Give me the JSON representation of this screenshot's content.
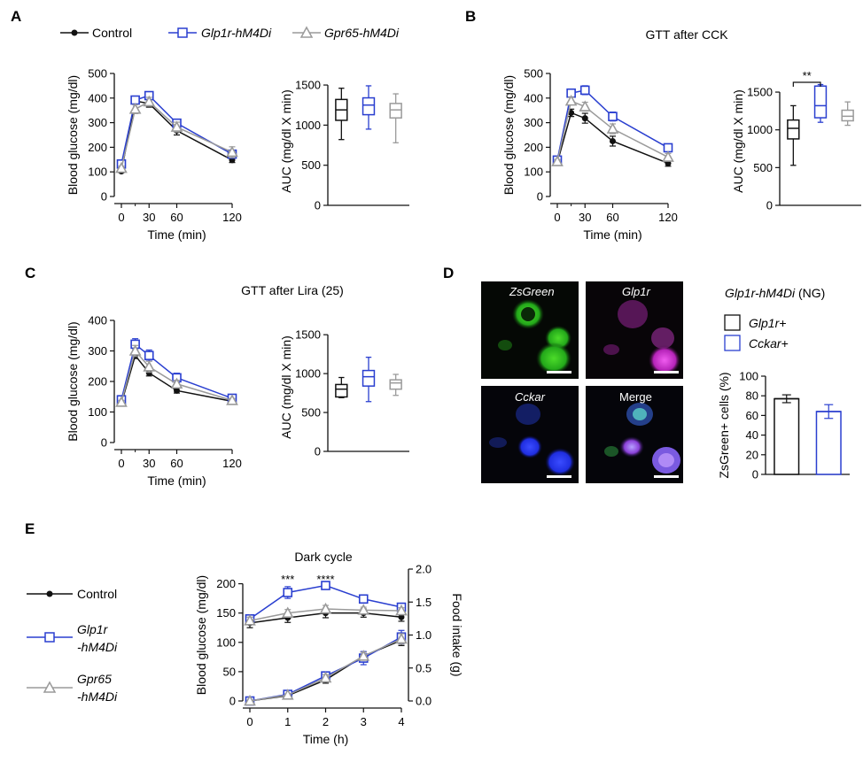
{
  "colors": {
    "control": "#111111",
    "glp1r": "#2a3fd0",
    "gpr65": "#9a9a9a"
  },
  "panels": {
    "A": "A",
    "B": "B",
    "C": "C",
    "D": "D",
    "E": "E"
  },
  "legend_top": {
    "control": "Control",
    "glp1r": "Glp1r-hM4Di",
    "gpr65": "Gpr65-hM4Di"
  },
  "legend_e": {
    "control": "Control",
    "glp1r_1": "Glp1r",
    "glp1r_2": "-hM4Di",
    "gpr65_1": "Gpr65",
    "gpr65_2": "-hM4Di"
  },
  "images": {
    "zsgreen": "ZsGreen",
    "glp1r": "Glp1r",
    "cckar": "Cckar",
    "merge": "Merge"
  },
  "chart_data": [
    {
      "id": "A-line",
      "type": "line",
      "title": "",
      "xlabel": "Time (min)",
      "ylabel": "Blood glucose (mg/dl)",
      "x": [
        0,
        15,
        30,
        60,
        120
      ],
      "xticks": [
        0,
        30,
        60,
        120
      ],
      "ylim": [
        0,
        500
      ],
      "yticks": [
        0,
        100,
        200,
        300,
        400,
        500
      ],
      "series": [
        {
          "name": "Control",
          "values": [
            102,
            388,
            378,
            268,
            148
          ],
          "err": [
            5,
            12,
            15,
            18,
            10
          ]
        },
        {
          "name": "Glp1r-hM4Di",
          "values": [
            132,
            392,
            410,
            298,
            172
          ],
          "err": [
            10,
            15,
            15,
            15,
            15
          ]
        },
        {
          "name": "Gpr65-hM4Di",
          "values": [
            115,
            355,
            385,
            282,
            180
          ],
          "err": [
            8,
            18,
            18,
            20,
            22
          ]
        }
      ]
    },
    {
      "id": "A-box",
      "type": "box",
      "title": "",
      "ylabel": "AUC (mg/dl X min)",
      "ylim": [
        0,
        1600
      ],
      "yticks": [
        0,
        500,
        1000,
        1500
      ],
      "boxes": [
        {
          "name": "Control",
          "min": 820,
          "q1": 1060,
          "median": 1190,
          "q3": 1320,
          "max": 1460
        },
        {
          "name": "Glp1r-hM4Di",
          "min": 950,
          "q1": 1130,
          "median": 1250,
          "q3": 1340,
          "max": 1490
        },
        {
          "name": "Gpr65-hM4Di",
          "min": 780,
          "q1": 1090,
          "median": 1190,
          "q3": 1270,
          "max": 1390
        }
      ]
    },
    {
      "id": "B-line",
      "type": "line",
      "title": "GTT after CCK",
      "xlabel": "Time (min)",
      "ylabel": "Blood glucose (mg/dl)",
      "x": [
        0,
        15,
        30,
        60,
        120
      ],
      "xticks": [
        0,
        30,
        60,
        120
      ],
      "ylim": [
        0,
        500
      ],
      "yticks": [
        0,
        100,
        200,
        300,
        400,
        500
      ],
      "series": [
        {
          "name": "Control",
          "values": [
            138,
            340,
            318,
            225,
            135
          ],
          "err": [
            8,
            15,
            20,
            20,
            12
          ]
        },
        {
          "name": "Glp1r-hM4Di",
          "values": [
            148,
            420,
            432,
            325,
            198
          ],
          "err": [
            8,
            15,
            18,
            18,
            12
          ]
        },
        {
          "name": "Gpr65-hM4Di",
          "values": [
            142,
            388,
            365,
            275,
            160
          ],
          "err": [
            8,
            15,
            18,
            20,
            15
          ]
        }
      ]
    },
    {
      "id": "B-box",
      "type": "box",
      "title": "",
      "ylabel": "AUC (mg/dl X min)",
      "ylim": [
        0,
        1700
      ],
      "yticks": [
        0,
        500,
        1000,
        1500
      ],
      "significance": "**",
      "boxes": [
        {
          "name": "Control",
          "min": 530,
          "q1": 880,
          "median": 1020,
          "q3": 1130,
          "max": 1320
        },
        {
          "name": "Glp1r-hM4Di",
          "min": 1100,
          "q1": 1160,
          "median": 1320,
          "q3": 1580,
          "max": 1600
        },
        {
          "name": "Gpr65-hM4Di",
          "min": 1060,
          "q1": 1120,
          "median": 1180,
          "q3": 1260,
          "max": 1370
        }
      ]
    },
    {
      "id": "C-line",
      "type": "line",
      "title": "GTT after Lira (25)",
      "xlabel": "Time (min)",
      "ylabel": "Blood glucose (mg/dl)",
      "x": [
        0,
        15,
        30,
        60,
        120
      ],
      "xticks": [
        0,
        30,
        60,
        120
      ],
      "ylim": [
        0,
        400
      ],
      "yticks": [
        0,
        100,
        200,
        300,
        400
      ],
      "series": [
        {
          "name": "Control",
          "values": [
            128,
            285,
            228,
            170,
            135
          ],
          "err": [
            5,
            10,
            10,
            8,
            6
          ]
        },
        {
          "name": "Glp1r-hM4Di",
          "values": [
            140,
            322,
            285,
            212,
            145
          ],
          "err": [
            6,
            18,
            18,
            15,
            8
          ]
        },
        {
          "name": "Gpr65-hM4Di",
          "values": [
            132,
            300,
            248,
            192,
            138
          ],
          "err": [
            6,
            18,
            18,
            12,
            6
          ]
        }
      ]
    },
    {
      "id": "C-box",
      "type": "box",
      "title": "",
      "ylabel": "AUC (mg/dl X min)",
      "ylim": [
        0,
        1650
      ],
      "yticks": [
        0,
        500,
        1000,
        1500
      ],
      "boxes": [
        {
          "name": "Control",
          "min": 690,
          "q1": 700,
          "median": 800,
          "q3": 860,
          "max": 950
        },
        {
          "name": "Glp1r-hM4Di",
          "min": 640,
          "q1": 840,
          "median": 960,
          "q3": 1040,
          "max": 1210
        },
        {
          "name": "Gpr65-hM4Di",
          "min": 720,
          "q1": 800,
          "median": 880,
          "q3": 920,
          "max": 990
        }
      ]
    },
    {
      "id": "D-bar",
      "type": "bar",
      "title": "Glp1r-hM4Di (NG)",
      "ylabel": "ZsGreen+ cells (%)",
      "ylim": [
        0,
        100
      ],
      "yticks": [
        0,
        20,
        40,
        60,
        80,
        100
      ],
      "categories": [
        "Glp1r+",
        "Cckar+"
      ],
      "values": [
        77,
        64
      ],
      "err": [
        4,
        7
      ]
    },
    {
      "id": "E-line",
      "type": "line",
      "title": "Dark cycle",
      "xlabel": "Time (h)",
      "ylabel": "Blood glucose (mg/dl)",
      "y2label": "Food intake (g)",
      "x": [
        0,
        1,
        2,
        3,
        4
      ],
      "xticks": [
        0,
        1,
        2,
        3,
        4
      ],
      "ylim": [
        0,
        225
      ],
      "yticks": [
        0,
        50,
        100,
        150,
        200
      ],
      "y2lim": [
        0,
        2.0
      ],
      "y2ticks": [
        "0.0",
        "0.5",
        "1.0",
        "1.5",
        "2.0"
      ],
      "stars": [
        {
          "x": 1,
          "text": "***"
        },
        {
          "x": 2,
          "text": "****"
        }
      ],
      "series": [
        {
          "name": "Control",
          "axis": "y",
          "values": [
            133,
            142,
            150,
            150,
            143
          ],
          "err": [
            8,
            8,
            8,
            7,
            7
          ]
        },
        {
          "name": "Glp1r-hM4Di",
          "axis": "y",
          "values": [
            140,
            185,
            197,
            174,
            160
          ],
          "err": [
            6,
            10,
            6,
            5,
            4
          ]
        },
        {
          "name": "Gpr65-hM4Di",
          "axis": "y",
          "values": [
            137,
            150,
            157,
            155,
            154
          ],
          "err": [
            6,
            6,
            6,
            5,
            5
          ]
        },
        {
          "name": "Control",
          "axis": "y2",
          "values": [
            0.0,
            0.08,
            0.32,
            0.68,
            0.92
          ],
          "err": [
            0.01,
            0.02,
            0.05,
            0.06,
            0.08
          ]
        },
        {
          "name": "Glp1r-hM4Di",
          "axis": "y2",
          "values": [
            0.0,
            0.1,
            0.38,
            0.65,
            0.97
          ],
          "err": [
            0.01,
            0.02,
            0.06,
            0.1,
            0.1
          ]
        },
        {
          "name": "Gpr65-hM4Di",
          "axis": "y2",
          "values": [
            0.0,
            0.09,
            0.35,
            0.68,
            0.94
          ],
          "err": [
            0.01,
            0.02,
            0.05,
            0.06,
            0.08
          ]
        }
      ]
    }
  ]
}
